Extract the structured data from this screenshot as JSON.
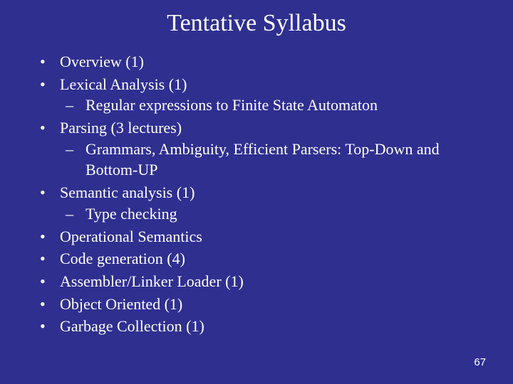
{
  "title": "Tentative Syllabus",
  "page_number": "67",
  "background_color": "#2f2f90",
  "text_color": "#ffffff",
  "title_fontsize": 34,
  "body_fontsize": 22,
  "items": [
    {
      "text": "Overview (1)",
      "sub": []
    },
    {
      "text": "Lexical Analysis (1)",
      "sub": [
        "Regular expressions to Finite State Automaton"
      ]
    },
    {
      "text": "Parsing (3 lectures)",
      "sub": [
        "Grammars, Ambiguity, Efficient Parsers: Top-Down and Bottom-UP"
      ]
    },
    {
      "text": "Semantic analysis (1)",
      "sub": [
        "Type checking"
      ]
    },
    {
      "text": "Operational Semantics",
      "sub": []
    },
    {
      "text": "Code generation (4)",
      "sub": []
    },
    {
      "text": "Assembler/Linker Loader (1)",
      "sub": []
    },
    {
      "text": "Object Oriented (1)",
      "sub": []
    },
    {
      "text": "Garbage Collection (1)",
      "sub": []
    }
  ]
}
